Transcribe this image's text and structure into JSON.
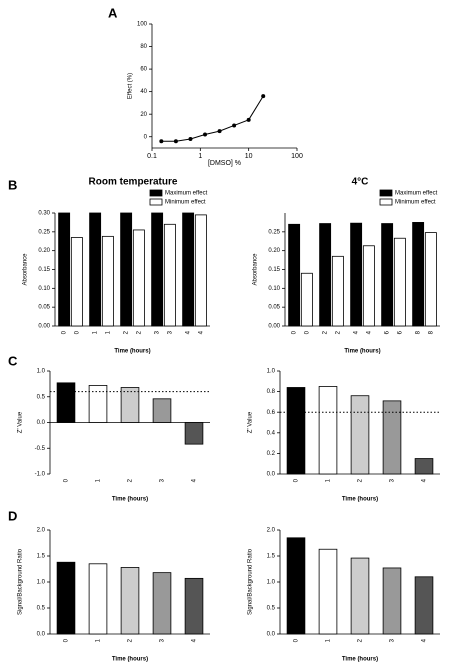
{
  "chart_data": [
    {
      "type": "scatter",
      "panel": "A",
      "xlabel": "[DMSO] %",
      "ylabel": "Effect (%)",
      "xlog": true,
      "xlim": [
        0.1,
        100
      ],
      "xticks": [
        0.1,
        1,
        10,
        100
      ],
      "ylim": [
        -10,
        100
      ],
      "yticks": [
        0,
        20,
        40,
        60,
        80,
        100
      ],
      "x": [
        0.156,
        0.3125,
        0.625,
        1.25,
        2.5,
        5,
        10,
        20
      ],
      "values": [
        -4,
        -4,
        -2,
        2,
        5,
        10,
        15,
        36
      ],
      "color": "#000000"
    },
    {
      "type": "bar",
      "panel": "B",
      "title": "Room temperature",
      "xlabel": "Time (hours)",
      "ylabel": "Absorbance",
      "categories": [
        "0",
        "1",
        "2",
        "3",
        "4"
      ],
      "legend": "top-right",
      "series": [
        {
          "name": "Maximum effect",
          "color": "#000000",
          "values": [
            0.3,
            0.3,
            0.3,
            0.3,
            0.3
          ]
        },
        {
          "name": "Minimum effect",
          "color": "#ffffff",
          "values": [
            0.235,
            0.238,
            0.255,
            0.27,
            0.295
          ]
        }
      ],
      "ylim": [
        0,
        0.3
      ],
      "yticks": [
        {
          "value": 0,
          "label": "0.00"
        },
        {
          "value": 0.05,
          "label": "0.05"
        },
        {
          "value": 0.1,
          "label": "0.10"
        },
        {
          "value": 0.15,
          "label": "0.15"
        },
        {
          "value": 0.2,
          "label": "0.20"
        },
        {
          "value": 0.25,
          "label": "0.25"
        },
        {
          "value": 0.3,
          "label": "0.30"
        }
      ]
    },
    {
      "type": "bar",
      "title": "4°C",
      "xlabel": "Time (hours)",
      "ylabel": "Absorbance",
      "categories": [
        "0",
        "2",
        "4",
        "6",
        "8"
      ],
      "legend": "top-right",
      "series": [
        {
          "name": "Maximum effect",
          "color": "#000000",
          "values": [
            0.27,
            0.272,
            0.273,
            0.272,
            0.275
          ]
        },
        {
          "name": "Minimum effect",
          "color": "#ffffff",
          "values": [
            0.14,
            0.185,
            0.213,
            0.233,
            0.248
          ]
        }
      ],
      "ylim": [
        0,
        0.3
      ],
      "yticks": [
        {
          "value": 0,
          "label": "0.00"
        },
        {
          "value": 0.05,
          "label": "0.05"
        },
        {
          "value": 0.1,
          "label": "0.10"
        },
        {
          "value": 0.15,
          "label": "0.15"
        },
        {
          "value": 0.2,
          "label": "0.20"
        },
        {
          "value": 0.25,
          "label": "0.25"
        }
      ]
    },
    {
      "type": "bar",
      "panel": "C",
      "xlabel": "Time (hours)",
      "ylabel": "Z' Value",
      "categories": [
        "0",
        "1",
        "2",
        "3",
        "4"
      ],
      "values": [
        0.77,
        0.72,
        0.68,
        0.46,
        -0.42
      ],
      "colors": [
        "#000000",
        "#ffffff",
        "#cccccc",
        "#999999",
        "#555555"
      ],
      "threshold": 0.6,
      "ylim": [
        -1,
        1
      ],
      "yticks": [
        {
          "value": -1,
          "label": "-1.0"
        },
        {
          "value": -0.5,
          "label": "-0.5"
        },
        {
          "value": 0,
          "label": "0.0"
        },
        {
          "value": 0.5,
          "label": "0.5"
        },
        {
          "value": 1,
          "label": "1.0"
        }
      ]
    },
    {
      "type": "bar",
      "xlabel": "Time (hours)",
      "ylabel": "Z' Value",
      "categories": [
        "0",
        "1",
        "2",
        "3",
        "4"
      ],
      "values": [
        0.84,
        0.85,
        0.76,
        0.71,
        0.15
      ],
      "colors": [
        "#000000",
        "#ffffff",
        "#cccccc",
        "#999999",
        "#555555"
      ],
      "threshold": 0.6,
      "ylim": [
        0,
        1
      ],
      "yticks": [
        {
          "value": 0,
          "label": "0.0"
        },
        0.2,
        0.4,
        0.6,
        0.8,
        {
          "value": 1,
          "label": "1.0"
        }
      ]
    },
    {
      "type": "bar",
      "panel": "D",
      "xlabel": "Time (hours)",
      "ylabel": "Signal/Background Ratio",
      "categories": [
        "0",
        "1",
        "2",
        "3",
        "4"
      ],
      "values": [
        1.38,
        1.35,
        1.28,
        1.18,
        1.07
      ],
      "colors": [
        "#000000",
        "#ffffff",
        "#cccccc",
        "#999999",
        "#555555"
      ],
      "ylim": [
        0,
        2
      ],
      "yticks": [
        {
          "value": 0,
          "label": "0.0"
        },
        0.5,
        {
          "value": 1,
          "label": "1.0"
        },
        1.5,
        {
          "value": 2,
          "label": "2.0"
        }
      ]
    },
    {
      "type": "bar",
      "xlabel": "Time (hours)",
      "ylabel": "Signal/Background Ratio",
      "categories": [
        "0",
        "1",
        "2",
        "3",
        "4"
      ],
      "values": [
        1.85,
        1.63,
        1.46,
        1.27,
        1.1
      ],
      "colors": [
        "#000000",
        "#ffffff",
        "#cccccc",
        "#999999",
        "#555555"
      ],
      "ylim": [
        0,
        2
      ],
      "yticks": [
        {
          "value": 0,
          "label": "0.0"
        },
        0.5,
        {
          "value": 1,
          "label": "1.0"
        },
        1.5,
        {
          "value": 2,
          "label": "2.0"
        }
      ]
    }
  ]
}
